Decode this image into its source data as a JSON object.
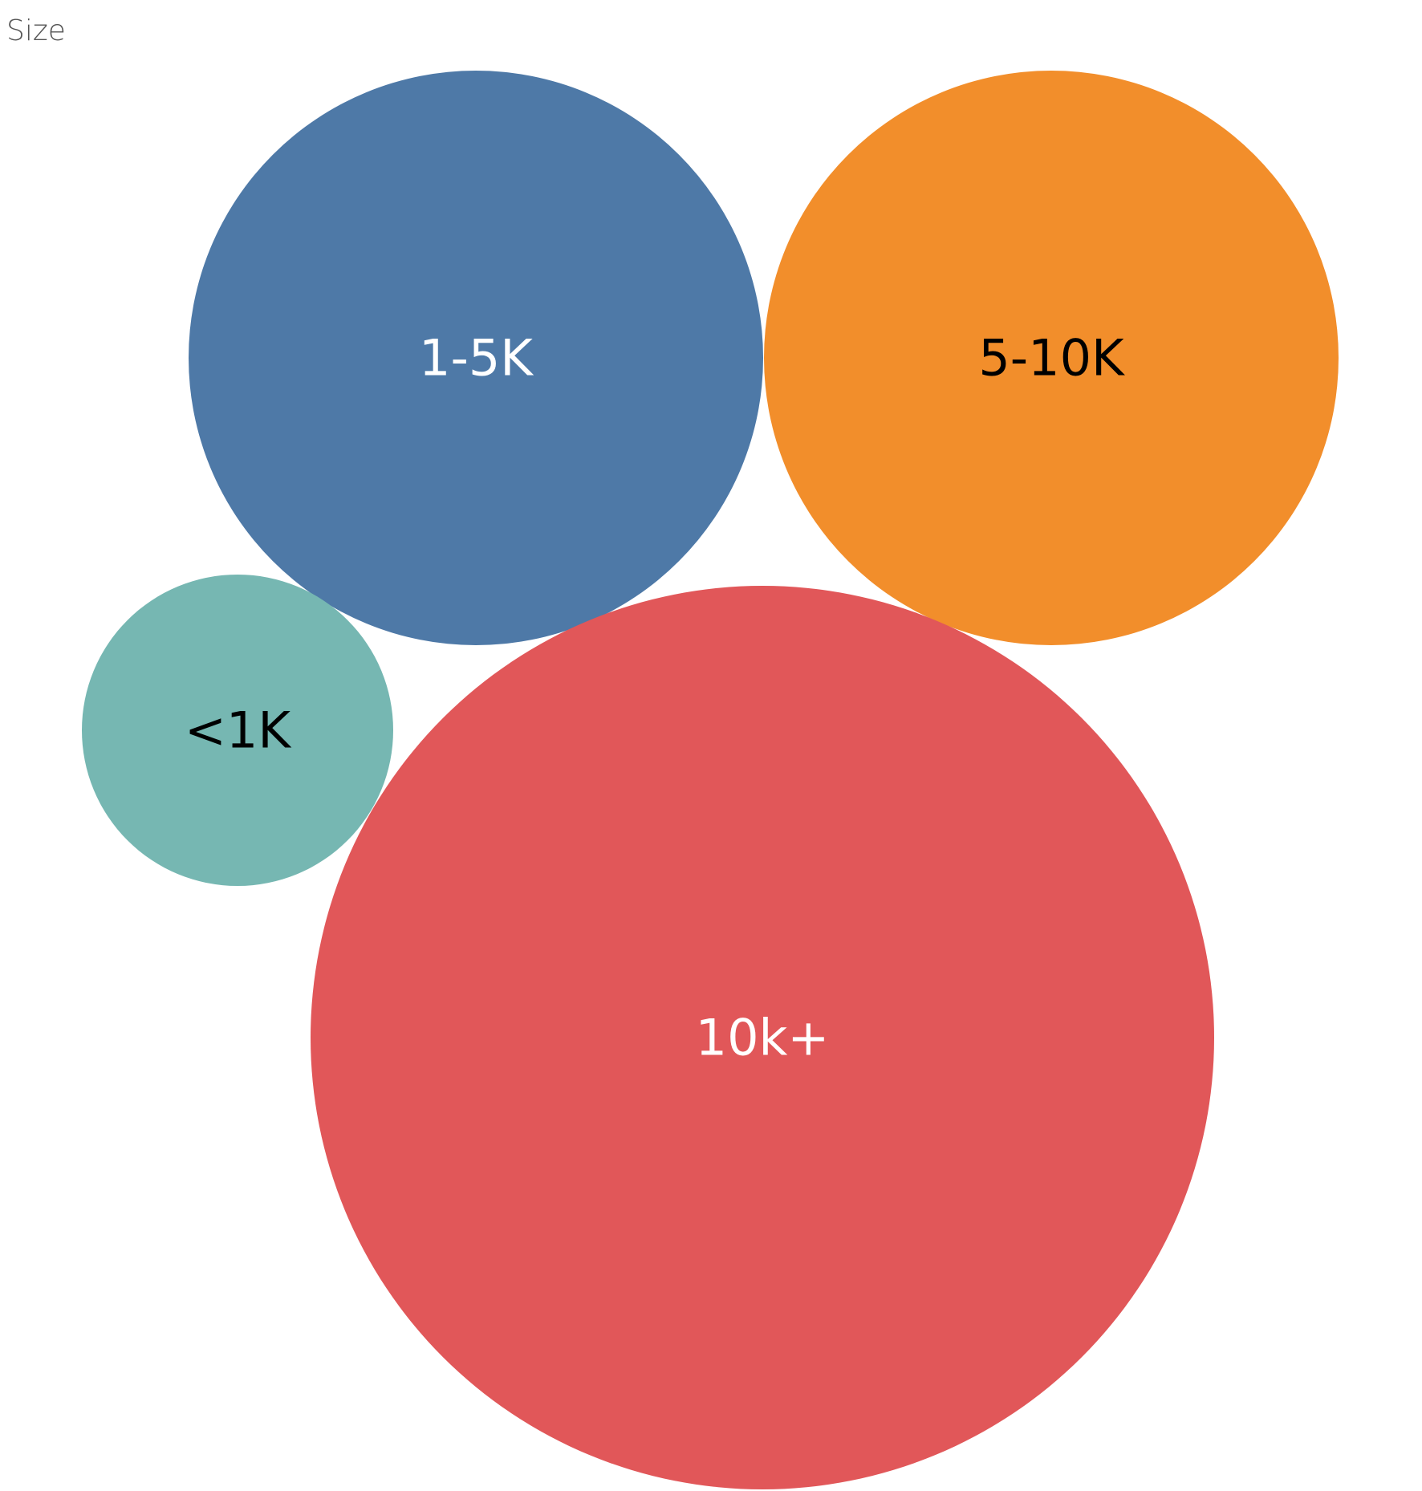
{
  "chart_data": {
    "type": "packed-bubble",
    "title": "Size",
    "bubbles": [
      {
        "label": "1-5K",
        "color": "#4e79a7",
        "label_color": "#ffffff"
      },
      {
        "label": "5-10K",
        "color": "#f28e2b",
        "label_color": "#000000"
      },
      {
        "label": "<1K",
        "color": "#76b7b2",
        "label_color": "#000000"
      },
      {
        "label": "10k+",
        "color": "#e15759",
        "label_color": "#ffffff"
      }
    ]
  }
}
